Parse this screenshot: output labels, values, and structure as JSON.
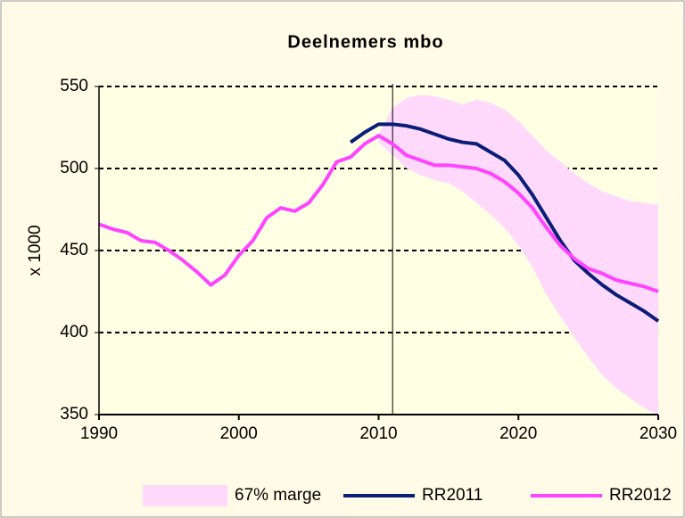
{
  "chart_data": {
    "type": "line",
    "title": "Deelnemers mbo",
    "ylabel": "x 1000",
    "x": [
      1990,
      1991,
      1992,
      1993,
      1994,
      1995,
      1996,
      1997,
      1998,
      1999,
      2000,
      2001,
      2002,
      2003,
      2004,
      2005,
      2006,
      2007,
      2008,
      2009,
      2010,
      2011,
      2012,
      2013,
      2014,
      2015,
      2016,
      2017,
      2018,
      2019,
      2020,
      2021,
      2022,
      2023,
      2024,
      2025,
      2026,
      2027,
      2028,
      2029,
      2030
    ],
    "xlim": [
      1990,
      2030
    ],
    "xticks": [
      1990,
      2000,
      2010,
      2020,
      2030
    ],
    "ylim": [
      350,
      550
    ],
    "yticks": [
      350,
      400,
      450,
      500,
      550
    ],
    "grid": true,
    "vline": 2011,
    "legend": "bottom",
    "series": [
      {
        "name": "67% marge",
        "color": "#ffd9fc",
        "upper": [
          null,
          null,
          null,
          null,
          null,
          null,
          null,
          null,
          null,
          null,
          null,
          null,
          null,
          null,
          null,
          null,
          null,
          null,
          null,
          null,
          521,
          537,
          543,
          545,
          544,
          542,
          539,
          542,
          540,
          536,
          529,
          520,
          511,
          504,
          497,
          491,
          486,
          483,
          480,
          479,
          478
        ],
        "lower": [
          null,
          null,
          null,
          null,
          null,
          null,
          null,
          null,
          null,
          null,
          null,
          null,
          null,
          null,
          null,
          null,
          null,
          null,
          null,
          null,
          516,
          508,
          500,
          496,
          493,
          491,
          486,
          479,
          472,
          464,
          453,
          440,
          423,
          410,
          397,
          385,
          374,
          366,
          360,
          354,
          350
        ]
      },
      {
        "name": "RR2011",
        "color": "#0a1e78",
        "values": [
          null,
          null,
          null,
          null,
          null,
          null,
          null,
          null,
          null,
          null,
          null,
          null,
          null,
          null,
          null,
          null,
          null,
          null,
          516,
          522,
          527,
          527,
          526,
          524,
          521,
          518,
          516,
          515,
          510,
          505,
          496,
          484,
          470,
          456,
          444,
          436,
          429,
          423,
          418,
          413,
          407
        ]
      },
      {
        "name": "RR2012",
        "color": "#ff44ff",
        "values": [
          466,
          463,
          461,
          456,
          455,
          450,
          444,
          437,
          429,
          435,
          447,
          456,
          470,
          476,
          474,
          479,
          490,
          504,
          507,
          515,
          520,
          515,
          508,
          505,
          502,
          502,
          501,
          500,
          497,
          492,
          485,
          476,
          464,
          453,
          445,
          439,
          436,
          432,
          430,
          428,
          425
        ]
      }
    ]
  }
}
